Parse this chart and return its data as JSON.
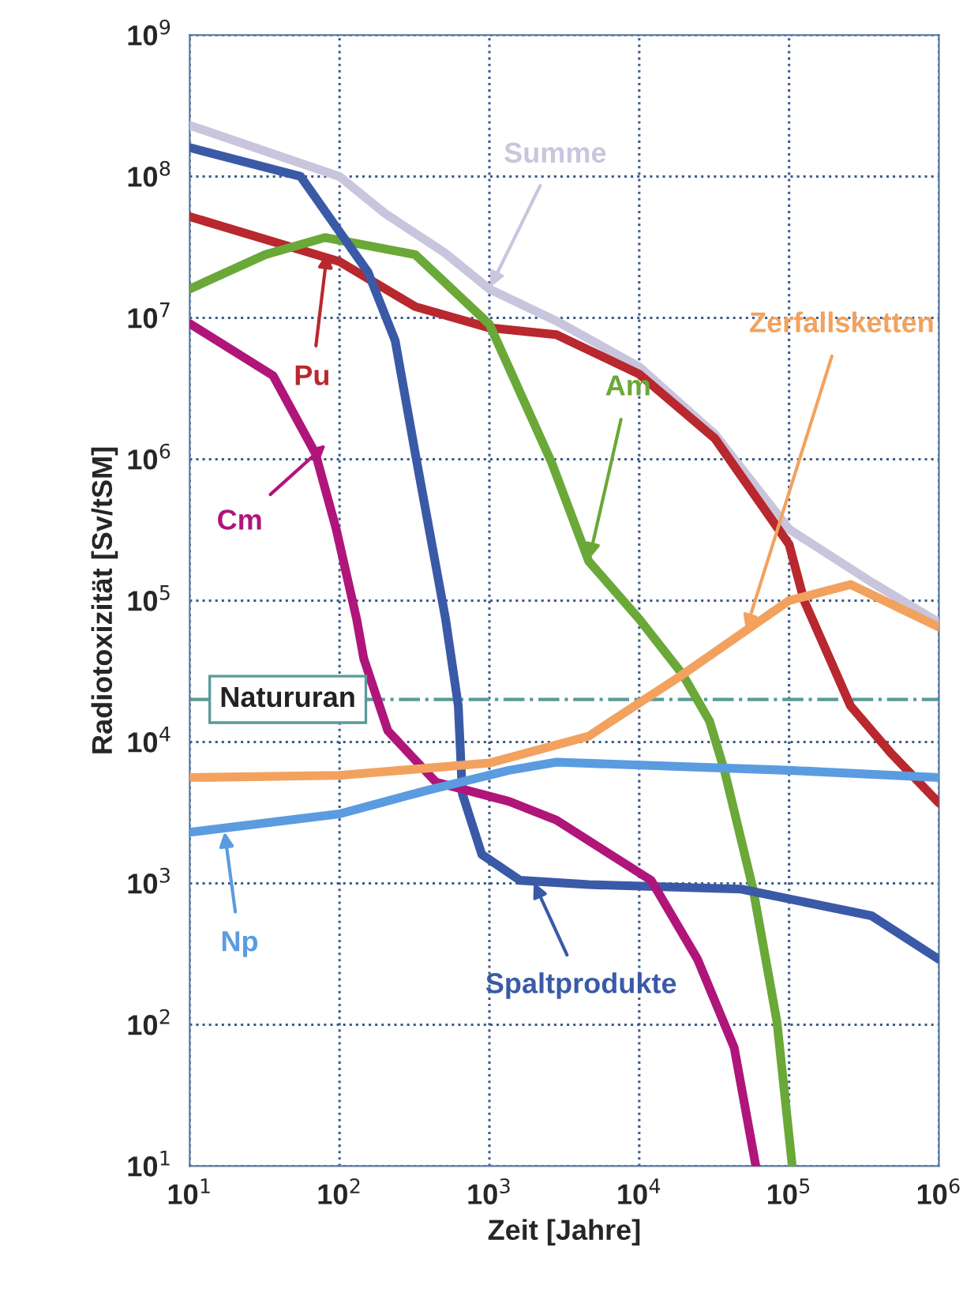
{
  "chart_data": {
    "type": "line",
    "xlabel": "Zeit [Jahre]",
    "ylabel": "Radiotoxizität [Sv/tSM]",
    "log": "xy",
    "grid": true,
    "line_style": "solid",
    "marker": "none",
    "xlim": [
      10,
      1000000
    ],
    "ylim": [
      10,
      1000000000
    ],
    "xticks": [
      {
        "value": 10,
        "label": "10$^{1}$"
      },
      {
        "value": 100,
        "label": "10$^{2}$"
      },
      {
        "value": 1000,
        "label": "10$^{3}$"
      },
      {
        "value": 10000,
        "label": "10$^{4}$"
      },
      {
        "value": 100000,
        "label": "10$^{5}$"
      },
      {
        "value": 1000000,
        "label": "10$^{6}$"
      }
    ],
    "yticks": [
      {
        "value": 10,
        "label": "10$^{1}$"
      },
      {
        "value": 100,
        "label": "10$^{2}$"
      },
      {
        "value": 1000,
        "label": "10$^{3}$"
      },
      {
        "value": 10000,
        "label": "10$^{4}$"
      },
      {
        "value": 100000,
        "label": "10$^{5}$"
      },
      {
        "value": 1000000,
        "label": "10$^{6}$"
      },
      {
        "value": 10000000,
        "label": "10$^{7}$"
      },
      {
        "value": 100000000,
        "label": "10$^{8}$"
      },
      {
        "value": 1000000000,
        "label": "10$^{9}$"
      }
    ],
    "series": [
      {
        "color": "#c9c5dd",
        "x": [
          10,
          100,
          200,
          500,
          1000,
          2800,
          10000,
          32000,
          100000,
          355000,
          1000000
        ],
        "values": [
          230000000,
          100000000,
          55000000,
          29000000,
          16000000,
          9500000,
          4500000,
          1500000,
          320000,
          135000,
          70000
        ]
      },
      {
        "color": "#b8282e",
        "x": [
          10,
          100,
          320,
          1000,
          2800,
          10000,
          32000,
          100000,
          126000,
          257000,
          480000,
          1000000
        ],
        "values": [
          52000000,
          25000000,
          12000000,
          8500000,
          7600000,
          4000000,
          1400000,
          250000,
          100000,
          18000,
          8300,
          3700
        ]
      },
      {
        "color": "#6aa838",
        "x": [
          10,
          32,
          80,
          320,
          1000,
          2600,
          4600,
          10000,
          19500,
          29500,
          37000,
          57500,
          83000,
          105000
        ],
        "values": [
          16000000,
          28000000,
          37000000,
          28000000,
          9000000,
          950000,
          190000,
          74000,
          30000,
          14000,
          6300,
          910,
          105,
          10
        ]
      },
      {
        "color": "#3a5aa8",
        "x": [
          10,
          55,
          155,
          235,
          320,
          510,
          620,
          660,
          890,
          1600,
          4600,
          48000,
          355000,
          1000000
        ],
        "values": [
          160000000,
          100000000,
          21000000,
          6900000,
          1100000,
          74000,
          18000,
          4300,
          1600,
          1050,
          980,
          910,
          590,
          290
        ]
      },
      {
        "color": "#b0157a",
        "x": [
          10,
          36,
          69,
          95,
          130,
          145,
          210,
          440,
          1350,
          2800,
          12000,
          24500,
          43000,
          60000
        ],
        "values": [
          9100000,
          3900000,
          1100000,
          320000,
          74000,
          39000,
          12000,
          5200,
          3800,
          2800,
          1050,
          290,
          69,
          10
        ]
      },
      {
        "color": "#5b9be0",
        "x": [
          10,
          100,
          400,
          1350,
          2800,
          100000,
          1000000
        ],
        "values": [
          2300,
          3100,
          4600,
          6300,
          7200,
          6300,
          5600
        ]
      },
      {
        "color": "#f2a25e",
        "x": [
          10,
          100,
          1000,
          4600,
          19500,
          100000,
          257000,
          1000000
        ],
        "values": [
          5600,
          5800,
          7100,
          11000,
          30000,
          100000,
          130000,
          65000
        ]
      }
    ],
    "ref_lines": [
      {
        "axis": "y",
        "value": 20000,
        "label": "Natururan",
        "color": "#5a9a9a",
        "line_style": "dashdot"
      }
    ],
    "annotations": [
      {
        "text": "Summe",
        "x": 1000,
        "y": 16000000
      },
      {
        "text": "Pu",
        "x": 83,
        "y": 30000000
      },
      {
        "text": "Am",
        "x": 4600,
        "y": 190000
      },
      {
        "text": "Cm",
        "x": 83,
        "y": 1300000
      },
      {
        "text": "Np",
        "x": 17,
        "y": 2400
      },
      {
        "text": "Spaltprodukte",
        "x": 1950,
        "y": 1050
      },
      {
        "text": "Zerfallsketten",
        "x": 51000,
        "y": 60000
      }
    ]
  }
}
